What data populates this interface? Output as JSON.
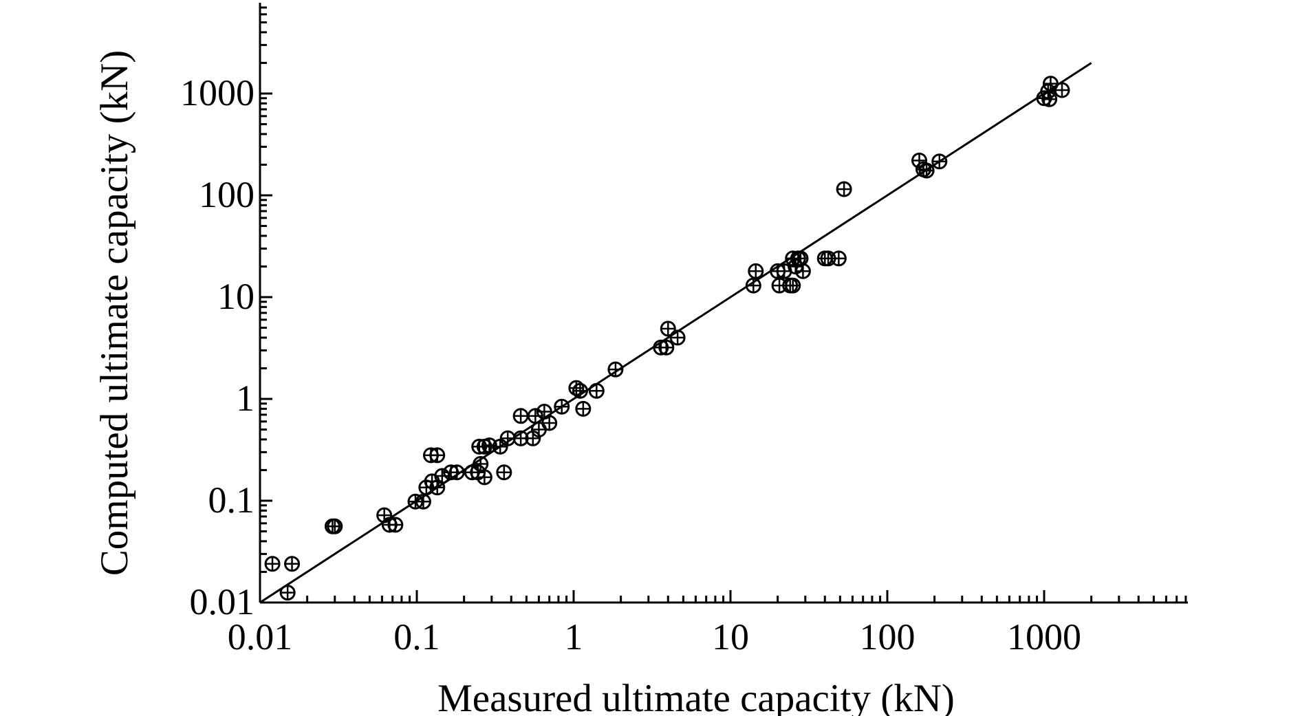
{
  "chart_data": {
    "type": "scatter",
    "xlabel": "Measured ultimate capacity (kN)",
    "ylabel": "Computed ultimate capacity (kN)",
    "x_scale": "log",
    "y_scale": "log",
    "xlim": [
      0.01,
      8000
    ],
    "ylim": [
      0.01,
      8000
    ],
    "x_ticks": [
      {
        "value": 0.01,
        "label": "0.01"
      },
      {
        "value": 0.1,
        "label": "0.1"
      },
      {
        "value": 1,
        "label": "1"
      },
      {
        "value": 10,
        "label": "10"
      },
      {
        "value": 100,
        "label": "100"
      },
      {
        "value": 1000,
        "label": "1000"
      }
    ],
    "y_ticks": [
      {
        "value": 0.01,
        "label": "0.01"
      },
      {
        "value": 0.1,
        "label": "0.1"
      },
      {
        "value": 1,
        "label": "1"
      },
      {
        "value": 10,
        "label": "10"
      },
      {
        "value": 100,
        "label": "100"
      },
      {
        "value": 1000,
        "label": "1000"
      }
    ],
    "grid": false,
    "marker": "circle-plus",
    "reference_line": {
      "x": [
        0.01,
        2000
      ],
      "y": [
        0.01,
        2000
      ]
    },
    "points": [
      {
        "x": 0.012,
        "y": 0.024
      },
      {
        "x": 0.016,
        "y": 0.024
      },
      {
        "x": 0.015,
        "y": 0.0125
      },
      {
        "x": 0.029,
        "y": 0.056
      },
      {
        "x": 0.03,
        "y": 0.056
      },
      {
        "x": 0.062,
        "y": 0.072
      },
      {
        "x": 0.067,
        "y": 0.058
      },
      {
        "x": 0.073,
        "y": 0.058
      },
      {
        "x": 0.098,
        "y": 0.098
      },
      {
        "x": 0.11,
        "y": 0.098
      },
      {
        "x": 0.115,
        "y": 0.135
      },
      {
        "x": 0.125,
        "y": 0.155
      },
      {
        "x": 0.135,
        "y": 0.135
      },
      {
        "x": 0.145,
        "y": 0.175
      },
      {
        "x": 0.165,
        "y": 0.19
      },
      {
        "x": 0.18,
        "y": 0.19
      },
      {
        "x": 0.123,
        "y": 0.28
      },
      {
        "x": 0.135,
        "y": 0.28
      },
      {
        "x": 0.225,
        "y": 0.19
      },
      {
        "x": 0.245,
        "y": 0.19
      },
      {
        "x": 0.255,
        "y": 0.23
      },
      {
        "x": 0.27,
        "y": 0.17
      },
      {
        "x": 0.36,
        "y": 0.19
      },
      {
        "x": 0.25,
        "y": 0.34
      },
      {
        "x": 0.27,
        "y": 0.34
      },
      {
        "x": 0.29,
        "y": 0.35
      },
      {
        "x": 0.34,
        "y": 0.34
      },
      {
        "x": 0.38,
        "y": 0.41
      },
      {
        "x": 0.46,
        "y": 0.41
      },
      {
        "x": 0.55,
        "y": 0.41
      },
      {
        "x": 0.6,
        "y": 0.5
      },
      {
        "x": 0.46,
        "y": 0.68
      },
      {
        "x": 0.57,
        "y": 0.68
      },
      {
        "x": 0.65,
        "y": 0.75
      },
      {
        "x": 0.7,
        "y": 0.58
      },
      {
        "x": 0.84,
        "y": 0.84
      },
      {
        "x": 1.04,
        "y": 1.28
      },
      {
        "x": 1.1,
        "y": 1.2
      },
      {
        "x": 1.15,
        "y": 0.8
      },
      {
        "x": 1.4,
        "y": 1.2
      },
      {
        "x": 1.85,
        "y": 1.95
      },
      {
        "x": 3.6,
        "y": 3.2
      },
      {
        "x": 3.9,
        "y": 3.2
      },
      {
        "x": 4.0,
        "y": 4.9
      },
      {
        "x": 4.6,
        "y": 4.0
      },
      {
        "x": 14.0,
        "y": 13.0
      },
      {
        "x": 14.5,
        "y": 18.0
      },
      {
        "x": 20.0,
        "y": 18.0
      },
      {
        "x": 20.5,
        "y": 13.0
      },
      {
        "x": 22.0,
        "y": 18.0
      },
      {
        "x": 24.0,
        "y": 13.0
      },
      {
        "x": 25.0,
        "y": 13.0
      },
      {
        "x": 25.0,
        "y": 24.0
      },
      {
        "x": 26.0,
        "y": 20.0
      },
      {
        "x": 27.0,
        "y": 24.0
      },
      {
        "x": 28.0,
        "y": 24.0
      },
      {
        "x": 29.0,
        "y": 18.0
      },
      {
        "x": 40.0,
        "y": 24.0
      },
      {
        "x": 42.0,
        "y": 24.0
      },
      {
        "x": 49.0,
        "y": 24.0
      },
      {
        "x": 53.0,
        "y": 115.0
      },
      {
        "x": 160.0,
        "y": 220.0
      },
      {
        "x": 170.0,
        "y": 180.0
      },
      {
        "x": 178.0,
        "y": 175.0
      },
      {
        "x": 215.0,
        "y": 215.0
      },
      {
        "x": 1000.0,
        "y": 900.0
      },
      {
        "x": 1060.0,
        "y": 1050.0
      },
      {
        "x": 1080.0,
        "y": 880.0
      },
      {
        "x": 1100.0,
        "y": 1250.0
      },
      {
        "x": 1300.0,
        "y": 1080.0
      }
    ]
  }
}
